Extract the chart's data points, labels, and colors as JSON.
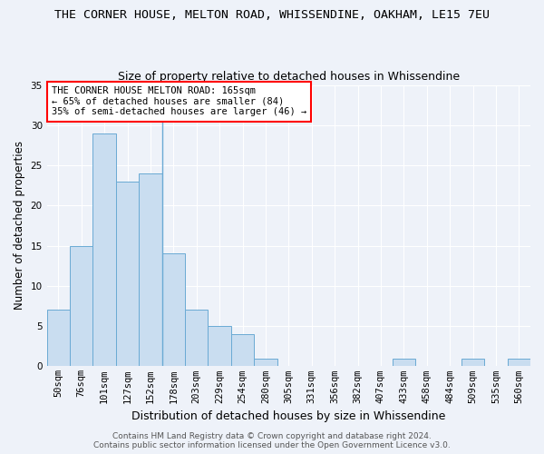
{
  "title": "THE CORNER HOUSE, MELTON ROAD, WHISSENDINE, OAKHAM, LE15 7EU",
  "subtitle": "Size of property relative to detached houses in Whissendine",
  "xlabel": "Distribution of detached houses by size in Whissendine",
  "ylabel": "Number of detached properties",
  "categories": [
    "50sqm",
    "76sqm",
    "101sqm",
    "127sqm",
    "152sqm",
    "178sqm",
    "203sqm",
    "229sqm",
    "254sqm",
    "280sqm",
    "305sqm",
    "331sqm",
    "356sqm",
    "382sqm",
    "407sqm",
    "433sqm",
    "458sqm",
    "484sqm",
    "509sqm",
    "535sqm",
    "560sqm"
  ],
  "values": [
    7,
    15,
    29,
    23,
    24,
    14,
    7,
    5,
    4,
    1,
    0,
    0,
    0,
    0,
    0,
    1,
    0,
    0,
    1,
    0,
    1
  ],
  "bar_color": "#c9ddf0",
  "bar_edge_color": "#6aaad4",
  "annotation_text": "THE CORNER HOUSE MELTON ROAD: 165sqm\n← 65% of detached houses are smaller (84)\n35% of semi-detached houses are larger (46) →",
  "annotation_box_color": "white",
  "annotation_box_edge_color": "red",
  "ylim": [
    0,
    35
  ],
  "yticks": [
    0,
    5,
    10,
    15,
    20,
    25,
    30,
    35
  ],
  "vline_x": 4.5,
  "footer_line1": "Contains HM Land Registry data © Crown copyright and database right 2024.",
  "footer_line2": "Contains public sector information licensed under the Open Government Licence v3.0.",
  "background_color": "#eef2f9",
  "grid_color": "white",
  "title_fontsize": 9.5,
  "subtitle_fontsize": 9,
  "xlabel_fontsize": 9,
  "ylabel_fontsize": 8.5,
  "tick_fontsize": 7.5,
  "annotation_fontsize": 7.5,
  "footer_fontsize": 6.5
}
